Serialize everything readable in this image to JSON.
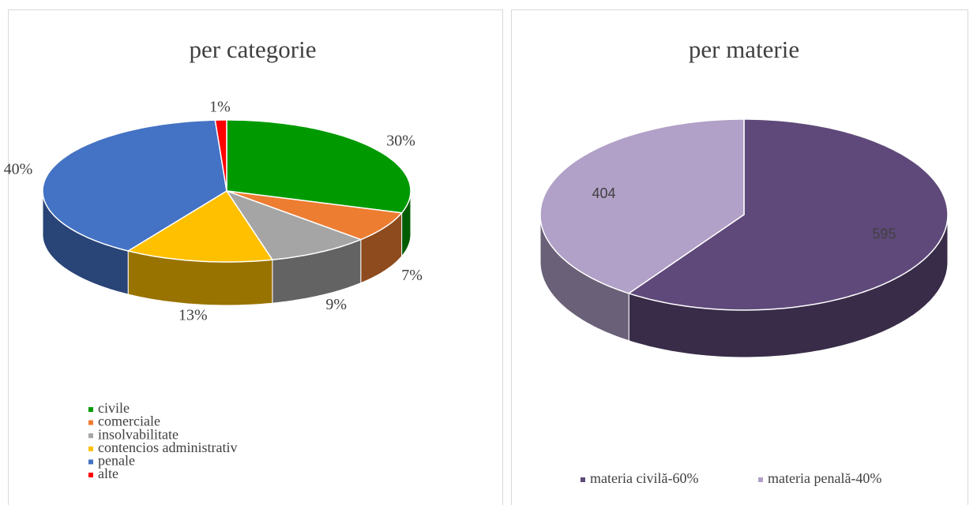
{
  "chart_data": [
    {
      "type": "pie",
      "title": "per categorie",
      "categories": [
        "civile",
        "comerciale",
        "insolvabilitate",
        "contencios administrativ",
        "penale",
        "alte"
      ],
      "values": [
        30,
        7,
        9,
        13,
        40,
        1
      ],
      "value_labels": [
        "30%",
        "7%",
        "9%",
        "13%",
        "40%",
        "1%"
      ],
      "colors": [
        "#009a00",
        "#ed7d31",
        "#a5a5a5",
        "#ffc000",
        "#4472c4",
        "#ff0000"
      ]
    },
    {
      "type": "pie",
      "title": "per materie",
      "categories": [
        "materia civilă-60%",
        "materia penală-40%"
      ],
      "values": [
        595,
        404
      ],
      "colors": [
        "#5f497a",
        "#b1a0c7"
      ]
    }
  ]
}
